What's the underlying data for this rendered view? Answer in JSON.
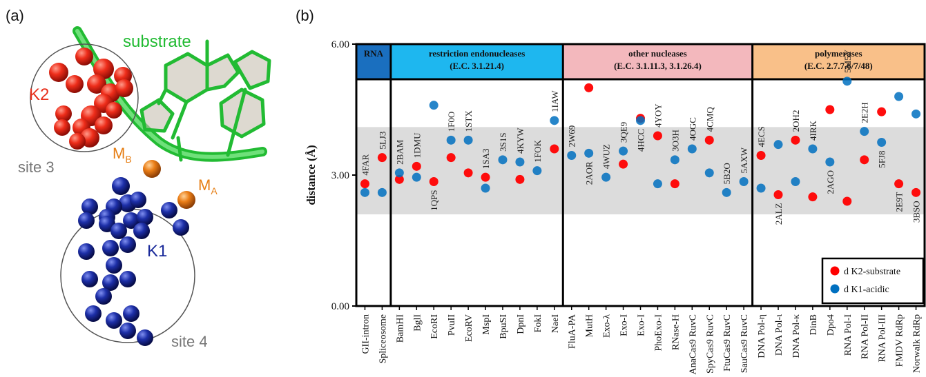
{
  "panel_a": {
    "label": "(a)",
    "labels": {
      "substrate": "substrate",
      "k2": "K2",
      "site3": "site 3",
      "mb_main": "M",
      "mb_sub": "B",
      "ma_main": "M",
      "ma_sub": "A",
      "k1": "K1",
      "site4": "site 4"
    },
    "colors": {
      "substrate": "#22bb33",
      "k2": "#e8301c",
      "k1": "#1a2a9a",
      "metal": "#e67e14",
      "site_text": "#777777"
    }
  },
  "panel_b": {
    "label": "(b)"
  },
  "chart_data": {
    "type": "scatter",
    "ylabel": "distance (Å)",
    "ylim": [
      0,
      6
    ],
    "yticks": [
      "0.00",
      "3.00",
      "6.00"
    ],
    "shaded_band": [
      2.1,
      4.1
    ],
    "groups": [
      {
        "line1": "RNA",
        "line2": "",
        "color": "#1a6fbf",
        "start": 0,
        "end": 1
      },
      {
        "line1": "restriction endonucleases",
        "line2": "(E.C. 3.1.21.4)",
        "color": "#1eb7ef",
        "start": 2,
        "end": 11
      },
      {
        "line1": "other nucleases",
        "line2": "(E.C. 3.1.11.3, 3.1.26.4)",
        "color": "#f3b8bd",
        "start": 12,
        "end": 22
      },
      {
        "line1": "polymerases",
        "line2": "(E.C. 2.7.7.6/7/48)",
        "color": "#f9c089",
        "start": 23,
        "end": 32
      }
    ],
    "categories": [
      "GII-intron",
      "Spliceosome",
      "BamHI",
      "BglI",
      "EcoRI",
      "PvuII",
      "EcoRV",
      "MspI",
      "BpuSI",
      "DpnI",
      "FokI",
      "NaeI",
      "FluA-PA",
      "MutH",
      "Exo-λ",
      "Exo-I",
      "Exo-I",
      "PhoExo-I",
      "RNase-H",
      "AnaCas9 RuvC",
      "SpyCas9 RuvC",
      "FtuCas9 RuvC",
      "SauCas9 RuvC",
      "DNA Pol-η",
      "DNA Pol-ι",
      "DNA Pol-κ",
      "DinB",
      "Dpo4",
      "RNA Pol-I",
      "RNA Pol-II",
      "RNA Pol-III",
      "FMDV RdRp",
      "Norwalk RdRp"
    ],
    "pdb_ids": [
      "4FAR",
      "5LJ3",
      "2BAM",
      "1DMU",
      "1QPS",
      "1F0O",
      "1STX",
      "1SA3",
      "3S1S",
      "4KYW",
      "1FOK",
      "1IAW",
      "2W69",
      "2AOR",
      "4WUZ",
      "3QE9",
      "4HCC",
      "4YOY",
      "3O3H",
      "4OGC",
      "4CMQ",
      "5B2O",
      "5AXW",
      "4ECS",
      "2ALZ",
      "2OH2",
      "4IRK",
      "2AGO",
      "5M5Y",
      "2E2H",
      "5FJ8",
      "2E9T",
      "3BSO"
    ],
    "series": [
      {
        "name": "d K2-substrate",
        "color": "#ff0000",
        "values": [
          2.8,
          3.4,
          2.9,
          3.2,
          2.85,
          3.4,
          3.05,
          2.95,
          null,
          2.9,
          null,
          3.6,
          null,
          5.0,
          null,
          3.25,
          4.3,
          3.9,
          2.8,
          null,
          3.8,
          null,
          null,
          3.45,
          2.55,
          3.8,
          2.5,
          4.5,
          2.4,
          3.35,
          4.45,
          2.8,
          2.6
        ]
      },
      {
        "name": "d K1-acidic",
        "color": "#0070c0",
        "values": [
          2.6,
          2.6,
          3.05,
          2.95,
          4.6,
          3.8,
          3.8,
          2.7,
          3.35,
          3.3,
          3.1,
          4.25,
          3.45,
          3.5,
          2.95,
          3.55,
          4.25,
          2.8,
          3.35,
          3.6,
          3.05,
          2.6,
          2.85,
          2.7,
          3.7,
          2.85,
          3.6,
          3.3,
          5.15,
          4.0,
          3.75,
          4.8,
          4.4
        ]
      }
    ],
    "label_positions": [
      "above",
      "above",
      "above",
      "above",
      "below",
      "above",
      "above",
      "above",
      "above",
      "above",
      "above",
      "above",
      "above",
      "below",
      "above",
      "above",
      "below",
      "above",
      "above",
      "above",
      "above",
      "above",
      "above",
      "above",
      "below",
      "above",
      "above",
      "below",
      "above",
      "above",
      "below",
      "below",
      "below"
    ],
    "legend": {
      "position": "bottom-right",
      "entries": [
        "d K2-substrate",
        "d K1-acidic"
      ]
    }
  }
}
